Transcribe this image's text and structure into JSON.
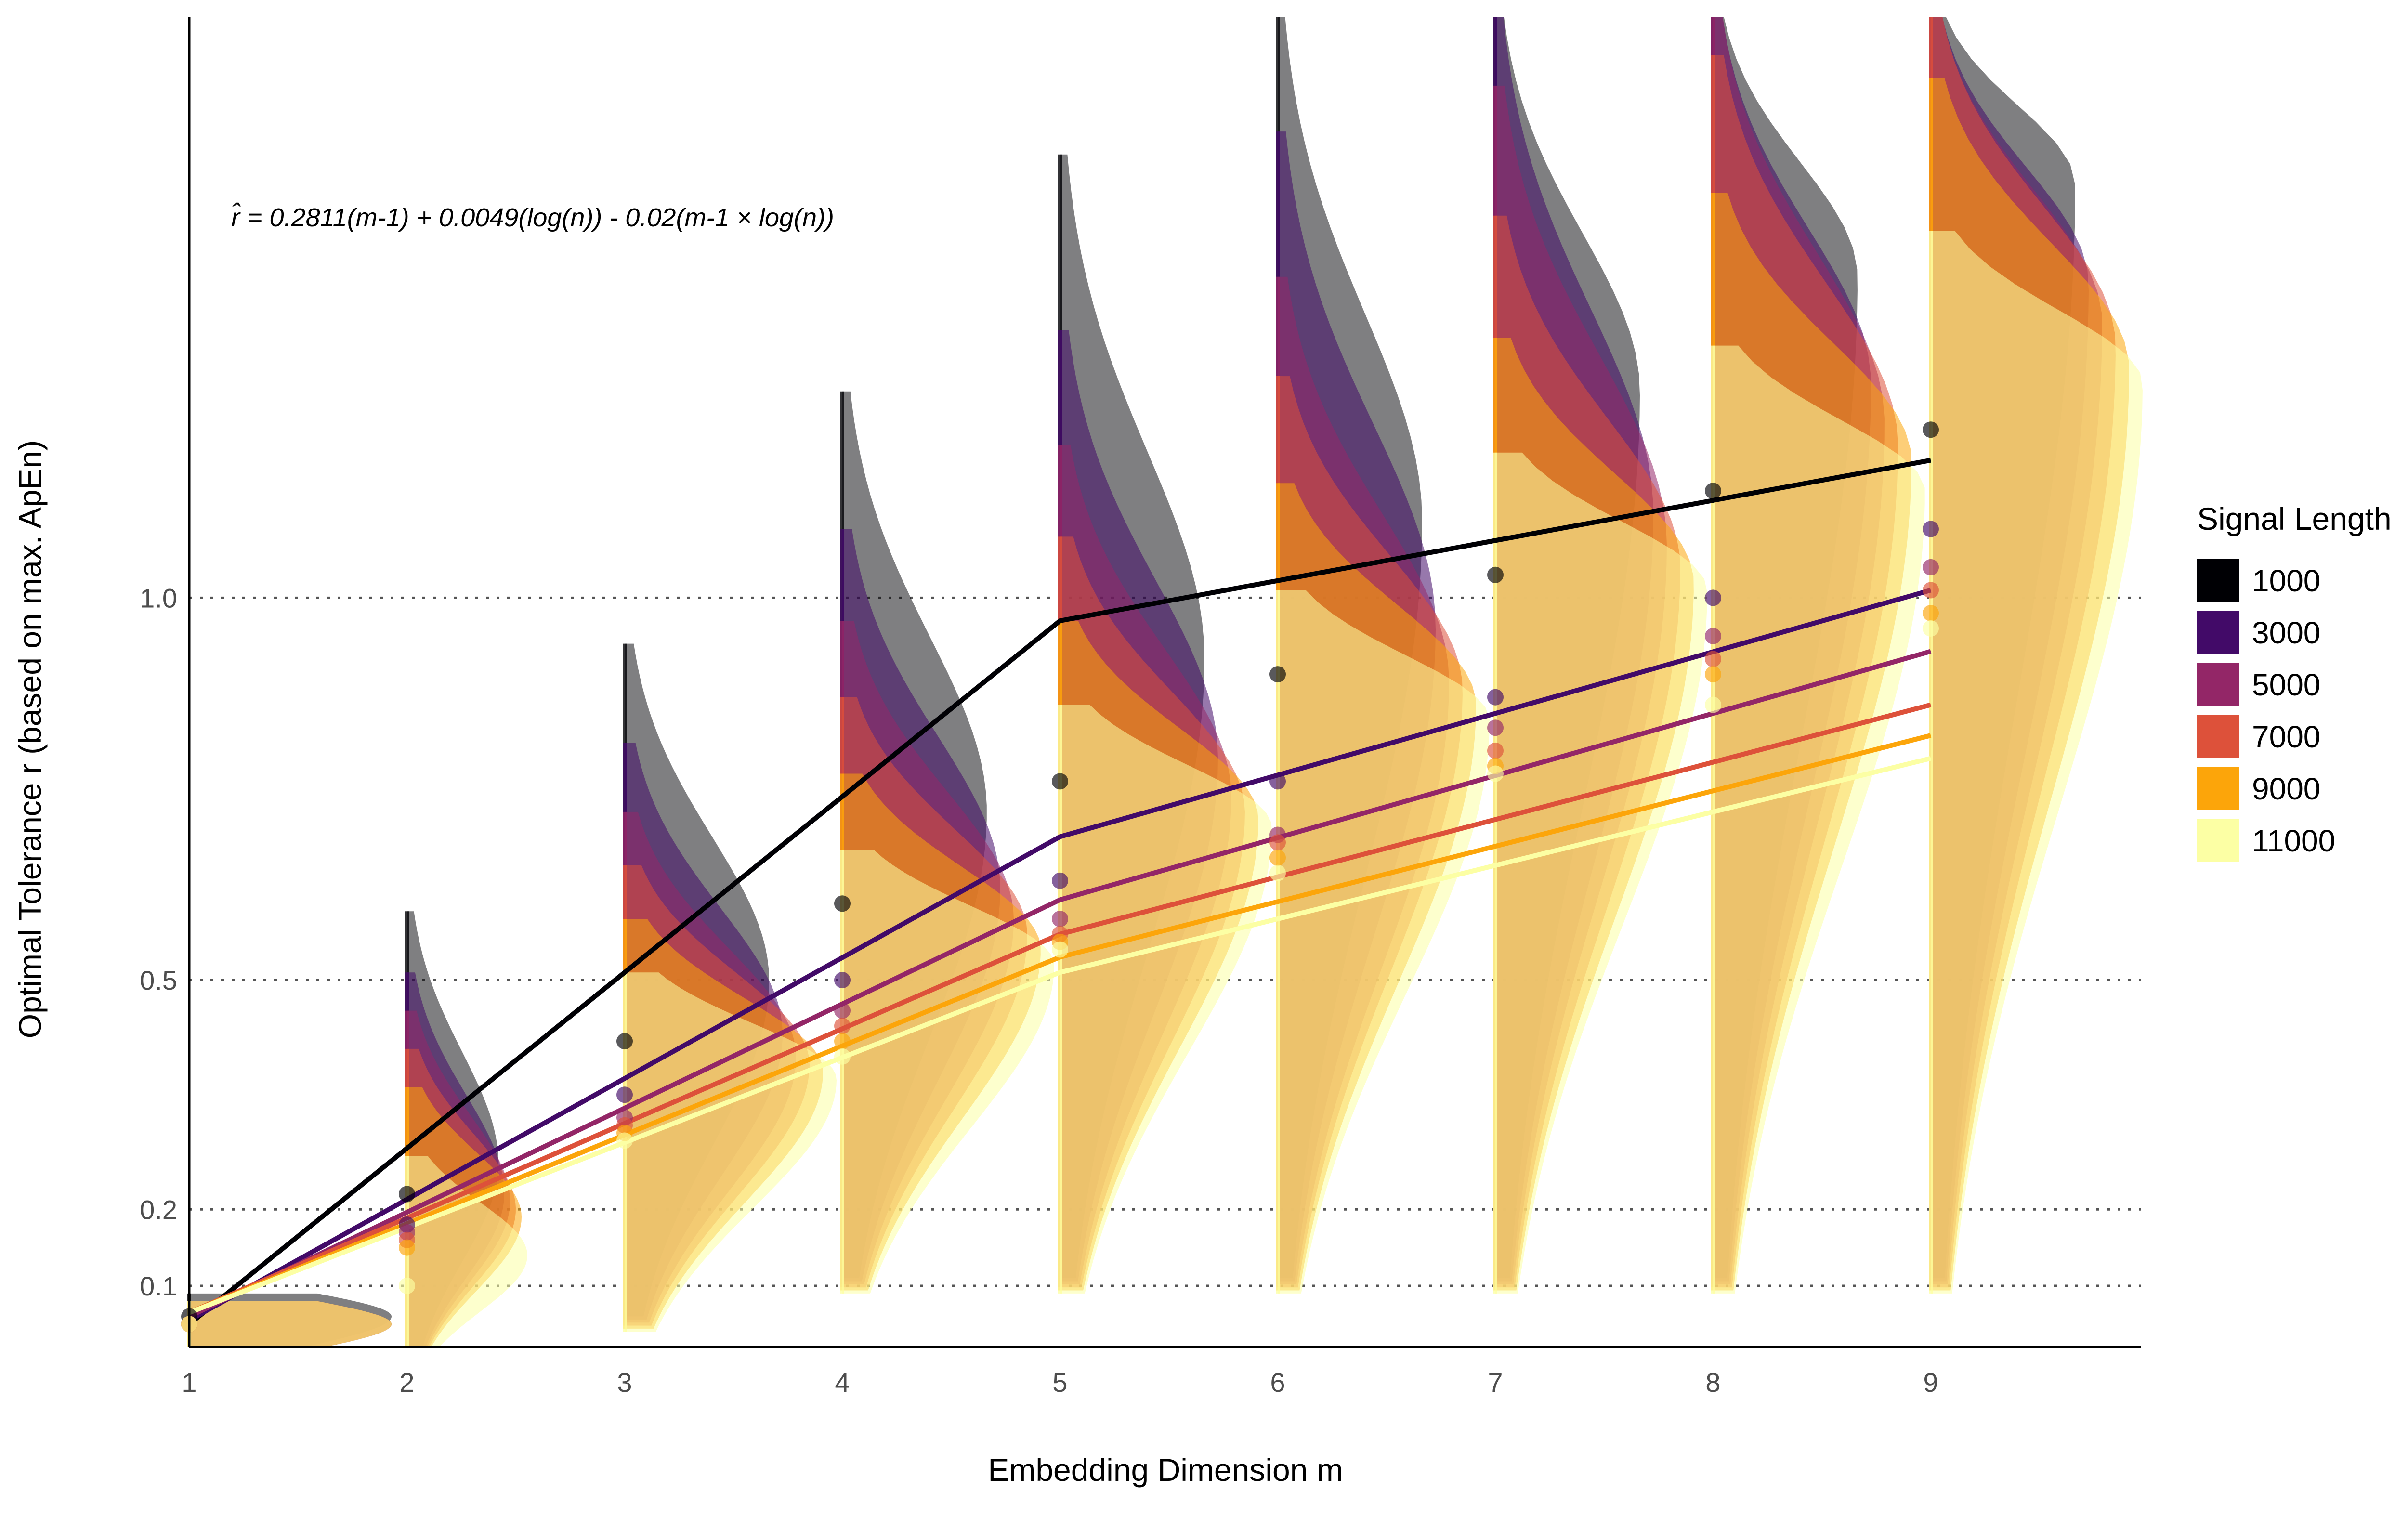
{
  "chart_data": {
    "type": "line",
    "xlabel": "Embedding Dimension m",
    "ylabel": "Optimal Tolerance r (based on max. ApEn)",
    "x": [
      1,
      2,
      3,
      4,
      5,
      6,
      7,
      8,
      9
    ],
    "y_ticks": [
      0.1,
      0.2,
      0.5,
      1.0
    ],
    "y_tick_labels": [
      "0.1",
      "0.2",
      "0.5",
      "1.0"
    ],
    "ylim": [
      0.02,
      1.76
    ],
    "grid": "dotted horizontal lines at y ticks",
    "annotation": "r̂ = 0.2811(m-1) + 0.0049(log(n)) - 0.02(m-1 × log(n))",
    "legend": {
      "title": "Signal Length",
      "placement": "right"
    },
    "series": [
      {
        "name": "1000",
        "color": "#000004",
        "points": [
          0.06,
          0.22,
          0.42,
          0.6,
          0.76,
          0.9,
          1.03,
          1.14,
          1.22
        ],
        "fit": [
          0.05,
          0.97,
          1.18
        ]
      },
      {
        "name": "3000",
        "color": "#420a68",
        "points": [
          0.05,
          0.18,
          0.35,
          0.5,
          0.63,
          0.76,
          0.87,
          1.0,
          1.09
        ],
        "fit": [
          0.055,
          0.6875,
          1.01
        ]
      },
      {
        "name": "5000",
        "color": "#932667",
        "points": [
          0.05,
          0.17,
          0.32,
          0.46,
          0.58,
          0.69,
          0.83,
          0.95,
          1.04
        ],
        "fit": [
          0.06,
          0.605,
          0.93
        ]
      },
      {
        "name": "7000",
        "color": "#dd513a",
        "points": [
          0.05,
          0.16,
          0.31,
          0.44,
          0.56,
          0.68,
          0.8,
          0.92,
          1.01
        ],
        "fit": [
          0.065,
          0.56,
          0.86
        ]
      },
      {
        "name": "9000",
        "color": "#fca50a",
        "points": [
          0.05,
          0.15,
          0.3,
          0.42,
          0.55,
          0.66,
          0.78,
          0.9,
          0.98
        ],
        "fit": [
          0.065,
          0.53,
          0.82
        ]
      },
      {
        "name": "11000",
        "color": "#fcffa4",
        "points": [
          0.05,
          0.1,
          0.29,
          0.4,
          0.54,
          0.64,
          0.77,
          0.86,
          0.96
        ],
        "fit": [
          0.065,
          0.51,
          0.79
        ]
      }
    ]
  }
}
